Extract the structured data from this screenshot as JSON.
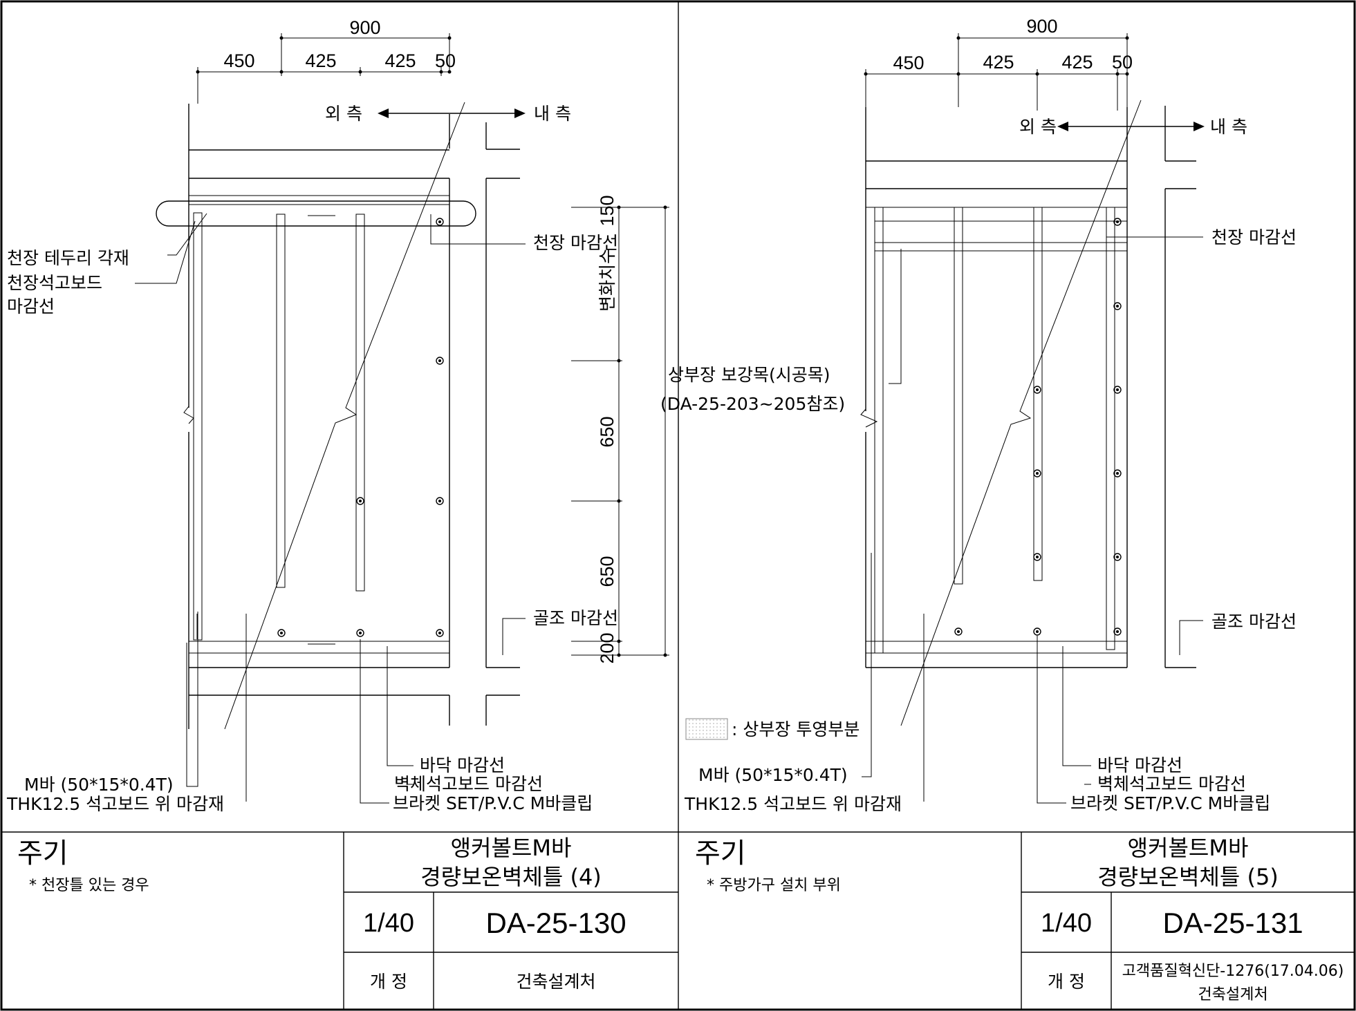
{
  "sheets": [
    {
      "dims_top": [
        "900",
        "450",
        "425",
        "425",
        "50"
      ],
      "dir_outer": "외 측",
      "dir_inner": "내 측",
      "label_ceiling_finish": "천장 마감선",
      "label_ceiling_edge": "천장 테두리 각재",
      "label_ceiling_board": "천장석고보드",
      "label_finish_line": "마감선",
      "label_skirting": "골조 마감선",
      "dims_side": [
        "150",
        "변화치수",
        "650",
        "650",
        "200"
      ],
      "label_floor": "바닥 마감선",
      "label_wall_board": "벽체석고보드 마감선",
      "label_bracket": "브라켓 SET/P.V.C M바클립",
      "label_mbar": "M바 (50*15*0.4T)",
      "label_thk": "THK12.5 석고보드 위 마감재",
      "note_title": "주기",
      "note_text": "* 천장틀 있는 경우",
      "title_line1": "앵커볼트M바",
      "title_line2": "경량보온벽체틀 (4)",
      "scale": "1/40",
      "drawing_no": "DA-25-130",
      "revision_label": "개  정",
      "revision_value": "건축설계처",
      "revision_value2": ""
    },
    {
      "dims_top": [
        "900",
        "450",
        "425",
        "425",
        "50"
      ],
      "dir_outer": "외 측",
      "dir_inner": "내 측",
      "label_ceiling_finish": "천장 마감선",
      "label_reinforce1": "상부장 보강목(시공목)",
      "label_reinforce2": "(DA-25-203~205참조)",
      "label_skirting": "골조 마감선",
      "legend_text": ": 상부장 투영부분",
      "label_floor": "바닥 마감선",
      "label_wall_board": "벽체석고보드 마감선",
      "label_bracket": "브라켓 SET/P.V.C M바클립",
      "label_mbar": "M바 (50*15*0.4T)",
      "label_thk": "THK12.5 석고보드 위 마감재",
      "note_title": "주기",
      "note_text": "* 주방가구 설치 부위",
      "title_line1": "앵커볼트M바",
      "title_line2": "경량보온벽체틀 (5)",
      "scale": "1/40",
      "drawing_no": "DA-25-131",
      "revision_label": "개  정",
      "revision_value": "고객품질혁신단-1276(17.04.06)",
      "revision_value2": "건축설계처"
    }
  ]
}
